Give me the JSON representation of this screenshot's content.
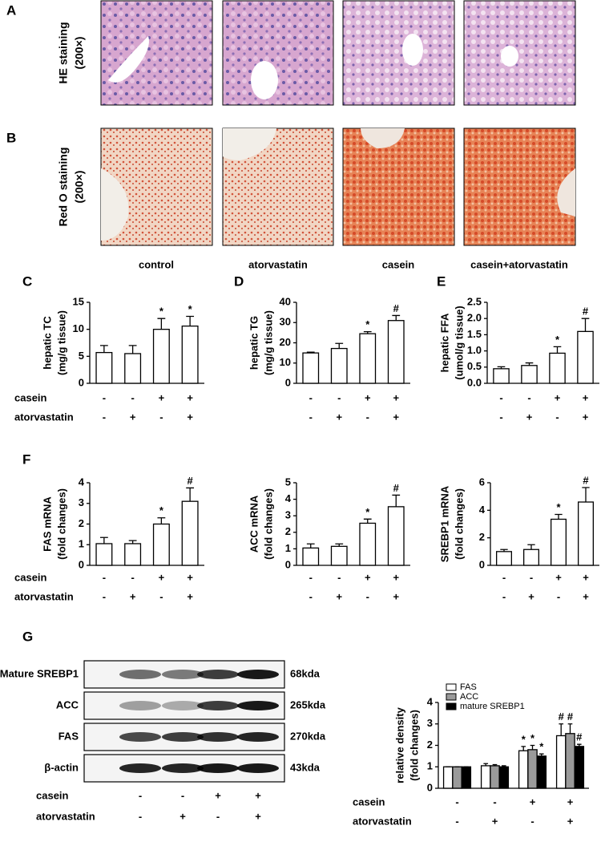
{
  "histology": {
    "panels": [
      {
        "label": "A",
        "title": "HE staining",
        "magnification": "(200×)"
      },
      {
        "label": "B",
        "title": "Red O staining",
        "magnification": "(200×)"
      }
    ],
    "groups": [
      "control",
      "atorvastatin",
      "casein",
      "casein+atorvastatin"
    ]
  },
  "chart_data": [
    {
      "type": "bar",
      "panel": "C",
      "ylabel": [
        "hepatic TC",
        "(mg/g tissue)"
      ],
      "color": "#ffffff",
      "ylim": [
        0,
        15
      ],
      "yticks": [
        0,
        5,
        10,
        15
      ],
      "values": [
        5.7,
        5.5,
        10,
        10.6
      ],
      "errors": [
        1.3,
        1.5,
        2,
        1.8
      ],
      "annotations": [
        null,
        null,
        "*",
        "*"
      ],
      "treatments": [
        {
          "name": "casein",
          "signs": [
            "-",
            "-",
            "+",
            "+"
          ]
        },
        {
          "name": "atorvastatin",
          "signs": [
            "-",
            "+",
            "-",
            "+"
          ]
        }
      ]
    },
    {
      "type": "bar",
      "panel": "D",
      "ylabel": [
        "hepatic TG",
        "(mg/g tissue)"
      ],
      "color": "#ffffff",
      "ylim": [
        0,
        40
      ],
      "yticks": [
        0,
        10,
        20,
        30,
        40
      ],
      "values": [
        15,
        17.2,
        24.5,
        31
      ],
      "errors": [
        0.4,
        2.5,
        1,
        2.5
      ],
      "annotations": [
        null,
        null,
        "*",
        "#"
      ],
      "treatments": [
        {
          "signs": [
            "-",
            "-",
            "+",
            "+"
          ]
        },
        {
          "signs": [
            "-",
            "+",
            "-",
            "+"
          ]
        }
      ]
    },
    {
      "type": "bar",
      "panel": "E",
      "ylabel": [
        "hepatic FFA",
        "(umol/g tissue)"
      ],
      "color": "#ffffff",
      "ylim": [
        0,
        2.5
      ],
      "yticks": [
        {
          "value": 0,
          "label": "0.0"
        },
        0.5,
        {
          "value": 1,
          "label": "1.0"
        },
        1.5,
        {
          "value": 2,
          "label": "2.0"
        },
        2.5
      ],
      "values": [
        0.45,
        0.55,
        0.93,
        1.6
      ],
      "errors": [
        0.06,
        0.08,
        0.2,
        0.4
      ],
      "annotations": [
        null,
        null,
        "*",
        "#"
      ],
      "treatments": [
        {
          "signs": [
            "-",
            "-",
            "+",
            "+"
          ]
        },
        {
          "signs": [
            "-",
            "+",
            "-",
            "+"
          ]
        }
      ]
    },
    {
      "type": "bar",
      "panel": "F",
      "ylabel": [
        "FAS mRNA",
        "(fold changes)"
      ],
      "color": "#ffffff",
      "ylim": [
        0,
        4
      ],
      "yticks": [
        0,
        1,
        2,
        3,
        4
      ],
      "values": [
        1.05,
        1.05,
        2.0,
        3.1
      ],
      "errors": [
        0.3,
        0.15,
        0.3,
        0.65
      ],
      "annotations": [
        null,
        null,
        "*",
        "#"
      ],
      "treatments": [
        {
          "name": "casein",
          "signs": [
            "-",
            "-",
            "+",
            "+"
          ]
        },
        {
          "name": "atorvastatin",
          "signs": [
            "-",
            "+",
            "-",
            "+"
          ]
        }
      ]
    },
    {
      "type": "bar",
      "ylabel": [
        "ACC mRNA",
        "(fold changes)"
      ],
      "color": "#ffffff",
      "ylim": [
        0,
        5
      ],
      "yticks": [
        0,
        1,
        2,
        3,
        4,
        5
      ],
      "values": [
        1.05,
        1.15,
        2.55,
        3.55
      ],
      "errors": [
        0.25,
        0.15,
        0.25,
        0.7
      ],
      "annotations": [
        null,
        null,
        "*",
        "#"
      ],
      "treatments": [
        {
          "signs": [
            "-",
            "-",
            "+",
            "+"
          ]
        },
        {
          "signs": [
            "-",
            "+",
            "-",
            "+"
          ]
        }
      ]
    },
    {
      "type": "bar",
      "ylabel": [
        "SREBP1 mRNA",
        "(fold changes)"
      ],
      "color": "#ffffff",
      "ylim": [
        0,
        6
      ],
      "yticks": [
        0,
        2,
        4,
        6
      ],
      "values": [
        1.0,
        1.15,
        3.35,
        4.6
      ],
      "errors": [
        0.15,
        0.35,
        0.35,
        1.05
      ],
      "annotations": [
        null,
        null,
        "*",
        "#"
      ],
      "treatments": [
        {
          "signs": [
            "-",
            "-",
            "+",
            "+"
          ]
        },
        {
          "signs": [
            "-",
            "+",
            "-",
            "+"
          ]
        }
      ]
    },
    {
      "type": "grouped_bar",
      "ylabel": [
        "relative density",
        "(fold changes)"
      ],
      "ylim": [
        0,
        4
      ],
      "yticks": [
        0,
        1,
        2,
        3,
        4
      ],
      "series": [
        {
          "name": "FAS",
          "color": "#ffffff",
          "values": [
            1,
            1.05,
            1.75,
            2.45
          ],
          "errors": [
            0,
            0.1,
            0.2,
            0.55
          ],
          "annotations": [
            null,
            null,
            "*",
            "#"
          ]
        },
        {
          "name": "ACC",
          "color": "#9a9a9a",
          "values": [
            1,
            1.05,
            1.8,
            2.55
          ],
          "errors": [
            0,
            0.05,
            0.2,
            0.45
          ],
          "annotations": [
            null,
            null,
            "*",
            "#"
          ]
        },
        {
          "name": "mature SREBP1",
          "color": "#000000",
          "values": [
            1,
            1.0,
            1.5,
            1.95
          ],
          "errors": [
            0,
            0.05,
            0.1,
            0.1
          ],
          "annotations": [
            null,
            null,
            "*",
            "#"
          ]
        }
      ],
      "treatments": [
        {
          "name": "casein",
          "signs": [
            "-",
            "-",
            "+",
            "+"
          ]
        },
        {
          "name": "atorvastatin",
          "signs": [
            "-",
            "+",
            "-",
            "+"
          ]
        }
      ]
    }
  ],
  "western": {
    "panel": "G",
    "proteins": [
      {
        "name": "Mature SREBP1",
        "size": "68kda"
      },
      {
        "name": "ACC",
        "size": "265kda"
      },
      {
        "name": "FAS",
        "size": "270kda"
      },
      {
        "name": "β-actin",
        "size": "43kda"
      }
    ],
    "treatments": [
      {
        "name": "casein",
        "signs": [
          "-",
          "-",
          "+",
          "+"
        ]
      },
      {
        "name": "atorvastatin",
        "signs": [
          "-",
          "+",
          "-",
          "+"
        ]
      }
    ]
  }
}
